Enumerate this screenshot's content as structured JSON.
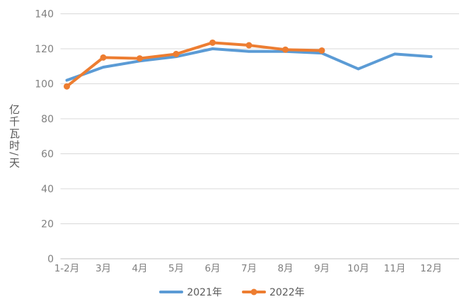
{
  "chart_data": {
    "type": "line",
    "title": "",
    "xlabel": "",
    "ylabel": "亿千瓦时/天",
    "ylim": [
      0,
      140
    ],
    "yticks": [
      0,
      20,
      40,
      60,
      80,
      100,
      120,
      140
    ],
    "grid": true,
    "legend_position": "bottom",
    "categories": [
      "1-2月",
      "3月",
      "4月",
      "5月",
      "6月",
      "7月",
      "8月",
      "9月",
      "10月",
      "11月",
      "12月"
    ],
    "series": [
      {
        "name": "2021年",
        "color": "#5B9BD5",
        "marker": "none",
        "values": [
          102,
          109.5,
          113,
          115.5,
          120,
          118.5,
          118.5,
          117.5,
          108.5,
          117,
          115.5
        ]
      },
      {
        "name": "2022年",
        "color": "#ED7D31",
        "marker": "circle",
        "values": [
          98.5,
          115,
          114.5,
          117,
          123.5,
          122,
          119.5,
          119,
          null,
          null,
          null
        ]
      }
    ]
  },
  "styles": {
    "grid_color": "#d9d9d9",
    "axis_color": "#c0c0c0",
    "tick_label_color": "#7f7f7f",
    "axis_title_color": "#595959",
    "legend_text_color": "#595959",
    "background": "#ffffff"
  }
}
